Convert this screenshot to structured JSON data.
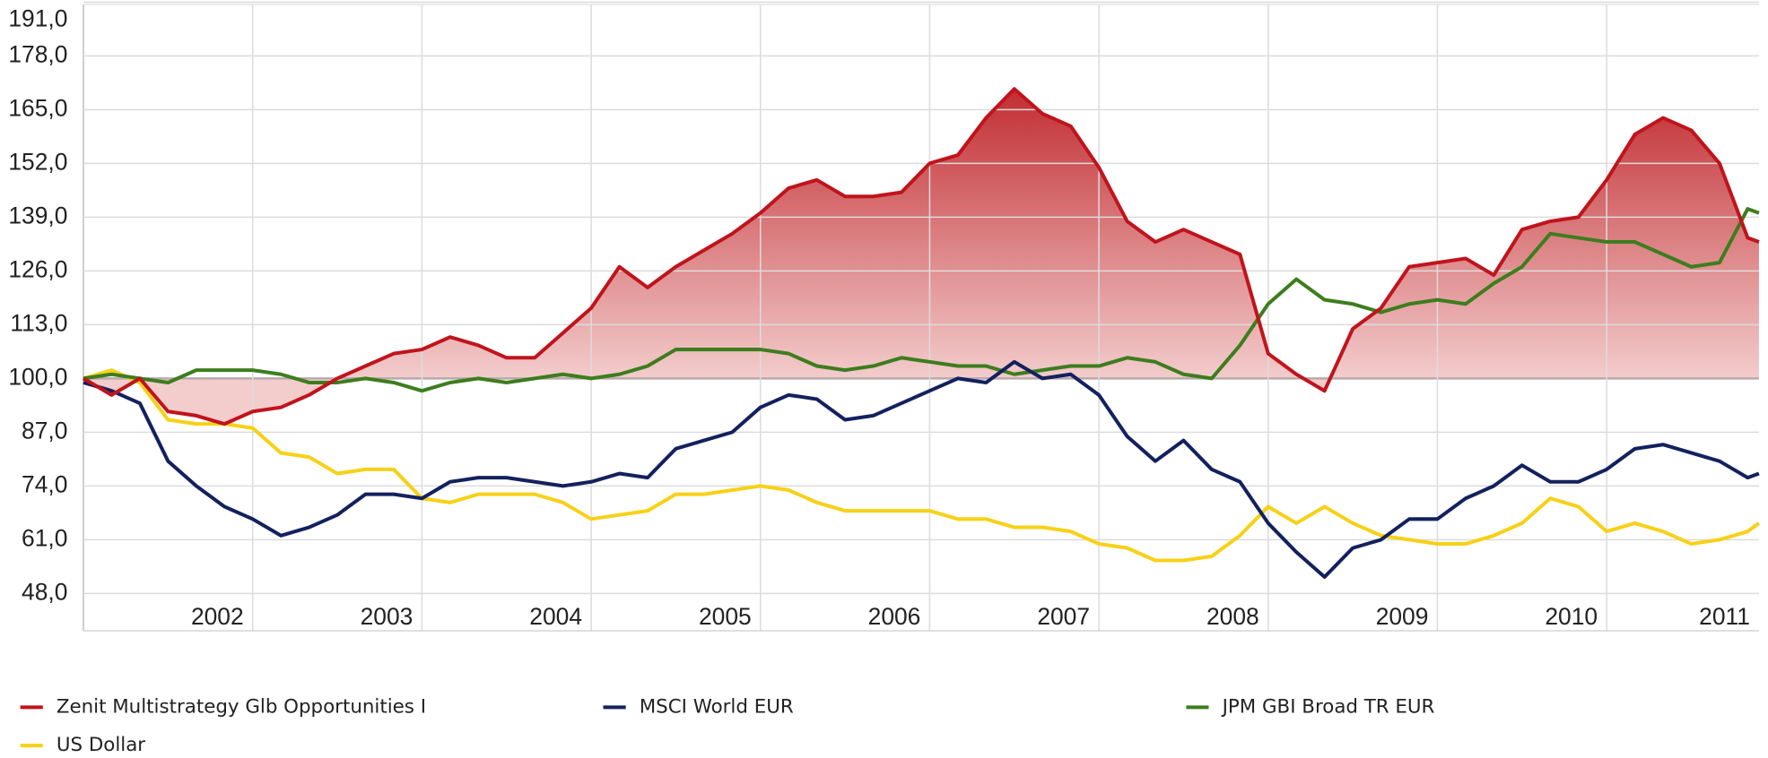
{
  "chart_data": {
    "type": "line",
    "x": [
      2001,
      2001.1667,
      2001.3333,
      2001.5,
      2001.6667,
      2001.8333,
      2002,
      2002.1667,
      2002.3333,
      2002.5,
      2002.6667,
      2002.8333,
      2003,
      2003.1667,
      2003.3333,
      2003.5,
      2003.6667,
      2003.8333,
      2004,
      2004.1667,
      2004.3333,
      2004.5,
      2004.6667,
      2004.8333,
      2005,
      2005.1667,
      2005.3333,
      2005.5,
      2005.6667,
      2005.8333,
      2006,
      2006.1667,
      2006.3333,
      2006.5,
      2006.6667,
      2006.8333,
      2007,
      2007.1667,
      2007.3333,
      2007.5,
      2007.6667,
      2007.8333,
      2008,
      2008.1667,
      2008.3333,
      2008.5,
      2008.6667,
      2008.8333,
      2009,
      2009.1667,
      2009.3333,
      2009.5,
      2009.6667,
      2009.8333,
      2010,
      2010.1667,
      2010.3333,
      2010.5,
      2010.6667,
      2010.8333,
      2010.9
    ],
    "series": [
      {
        "name": "Zenit Multistrategy Glb Opportunities I",
        "color": "#c0141c",
        "fill": true,
        "values": [
          100,
          96,
          100,
          92,
          91,
          89,
          92,
          93,
          96,
          100,
          103,
          106,
          107,
          110,
          108,
          105,
          105,
          111,
          117,
          127,
          122,
          127,
          131,
          135,
          140,
          146,
          148,
          144,
          144,
          145,
          152,
          154,
          163,
          170,
          164,
          161,
          151,
          138,
          133,
          136,
          133,
          130,
          106,
          101,
          97,
          112,
          117,
          127,
          128,
          129,
          125,
          136,
          138,
          139,
          148,
          159,
          163,
          160,
          152,
          134,
          133
        ]
      },
      {
        "name": "MSCI World EUR",
        "color": "#13215e",
        "values": [
          99,
          97,
          94,
          80,
          74,
          69,
          66,
          62,
          64,
          67,
          72,
          72,
          71,
          75,
          76,
          76,
          75,
          74,
          75,
          77,
          76,
          83,
          85,
          87,
          93,
          96,
          95,
          90,
          91,
          94,
          97,
          100,
          99,
          104,
          100,
          101,
          96,
          86,
          80,
          85,
          78,
          75,
          65,
          58,
          52,
          59,
          61,
          66,
          66,
          71,
          74,
          79,
          75,
          75,
          78,
          83,
          84,
          82,
          80,
          76,
          77
        ]
      },
      {
        "name": "JPM GBI Broad TR EUR",
        "color": "#3d7d1e",
        "values": [
          100,
          101,
          100,
          99,
          102,
          102,
          102,
          101,
          99,
          99,
          100,
          99,
          97,
          99,
          100,
          99,
          100,
          101,
          100,
          101,
          103,
          107,
          107,
          107,
          107,
          106,
          103,
          102,
          103,
          105,
          104,
          103,
          103,
          101,
          102,
          103,
          103,
          105,
          104,
          101,
          100,
          108,
          118,
          124,
          119,
          118,
          116,
          118,
          119,
          118,
          123,
          127,
          135,
          134,
          133,
          133,
          130,
          127,
          128,
          141,
          140
        ]
      },
      {
        "name": "US Dollar",
        "color": "#f7d117",
        "values": [
          100,
          102,
          99,
          90,
          89,
          89,
          88,
          82,
          81,
          77,
          78,
          78,
          71,
          70,
          72,
          72,
          72,
          70,
          66,
          67,
          68,
          72,
          72,
          73,
          74,
          73,
          70,
          68,
          68,
          68,
          68,
          66,
          66,
          64,
          64,
          63,
          60,
          59,
          56,
          56,
          57,
          62,
          69,
          65,
          69,
          65,
          62,
          61,
          60,
          60,
          62,
          65,
          71,
          69,
          63,
          65,
          63,
          60,
          61,
          63,
          65
        ]
      }
    ],
    "area_baseline": 100,
    "xlim": [
      2001,
      2010.9
    ],
    "xticks": [
      2002,
      2003,
      2004,
      2005,
      2006,
      2007,
      2008,
      2009,
      2010,
      2011
    ],
    "ylim": [
      39,
      191.5
    ],
    "yticks": [
      {
        "value": 48,
        "label": "48,0"
      },
      {
        "value": 61,
        "label": "61,0"
      },
      {
        "value": 74,
        "label": "74,0"
      },
      {
        "value": 87,
        "label": "87,0"
      },
      {
        "value": 100,
        "label": "100,0"
      },
      {
        "value": 113,
        "label": "113,0"
      },
      {
        "value": 126,
        "label": "126,0"
      },
      {
        "value": 139,
        "label": "139,0"
      },
      {
        "value": 152,
        "label": "152,0"
      },
      {
        "value": 165,
        "label": "165,0"
      },
      {
        "value": 178,
        "label": "178,0"
      },
      {
        "value": 191,
        "label": "191,0"
      }
    ],
    "grid": true,
    "legend": "bottom"
  }
}
